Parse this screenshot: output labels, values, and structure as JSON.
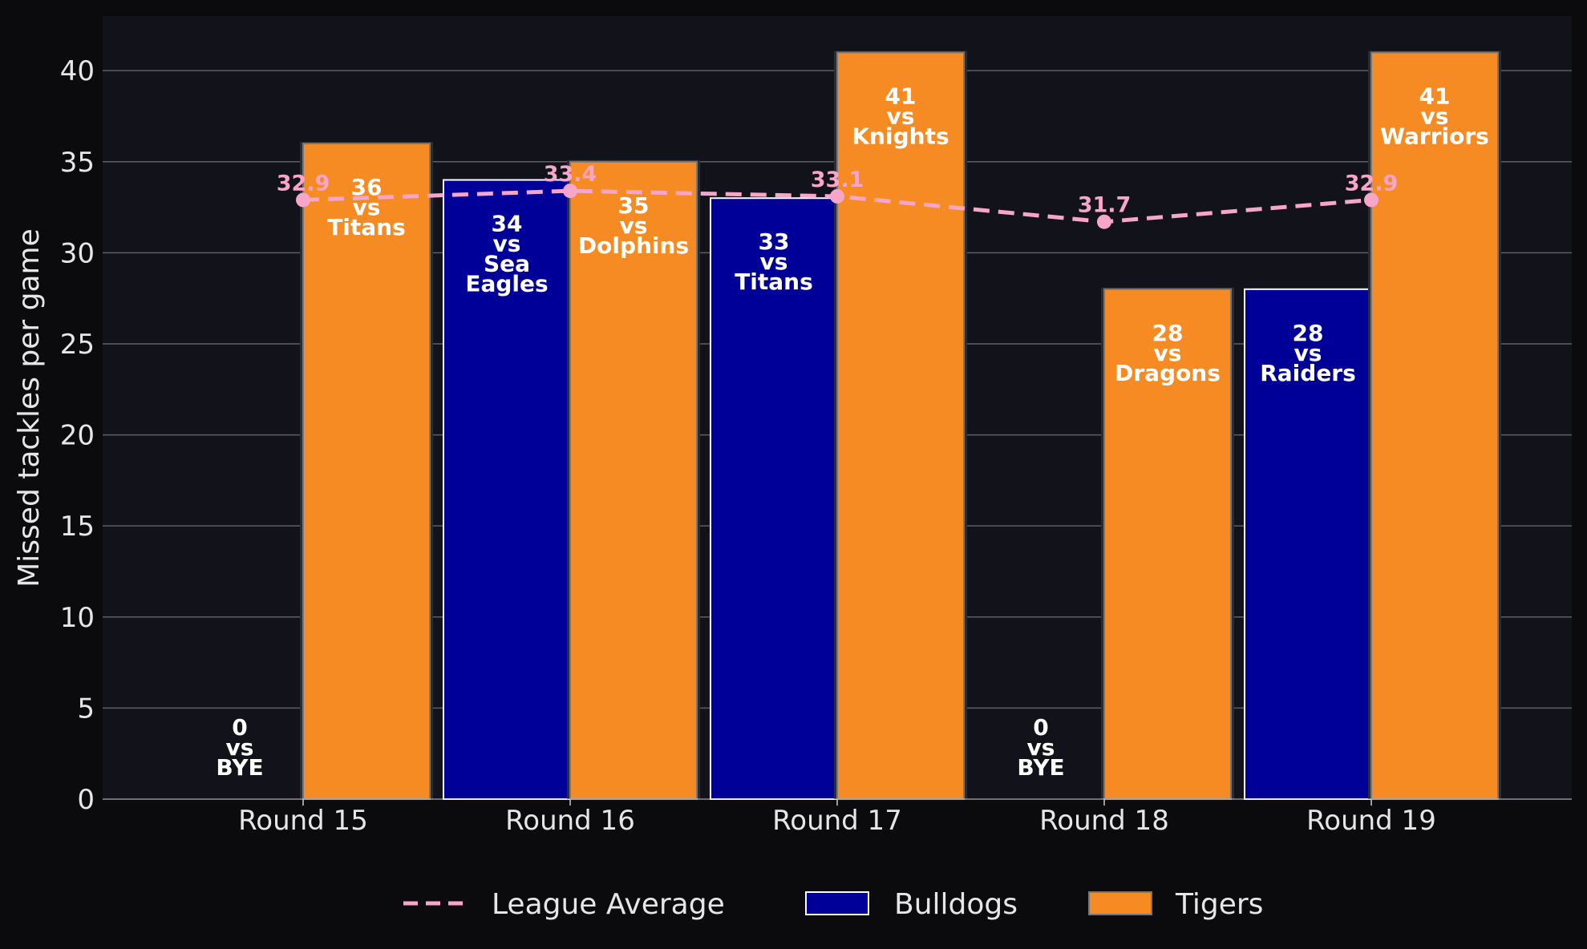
{
  "chart_data": {
    "type": "bar",
    "xlabel": "",
    "ylabel": "Missed tackles per game",
    "ylim": [
      0,
      43
    ],
    "yticks": [
      0,
      5,
      10,
      15,
      20,
      25,
      30,
      35,
      40
    ],
    "grid": "horizontal",
    "legend_position": "bottom-center",
    "categories": [
      "Round 15",
      "Round 16",
      "Round 17",
      "Round 18",
      "Round 19"
    ],
    "series": [
      {
        "name": "Bulldogs",
        "color": "#000099",
        "values": [
          0,
          34,
          33,
          0,
          28
        ],
        "opponents": [
          "BYE",
          "Sea\nEagles",
          "Titans",
          "BYE",
          "Raiders"
        ]
      },
      {
        "name": "Tigers",
        "color": "#f58b22",
        "values": [
          36,
          35,
          41,
          28,
          41
        ],
        "opponents": [
          "Titans",
          "Dolphins",
          "Knights",
          "Dragons",
          "Warriors"
        ]
      }
    ],
    "vs_text": "vs",
    "league_average": {
      "name": "League Average",
      "color": "#f7a6c9",
      "values": [
        32.9,
        33.4,
        33.1,
        31.7,
        32.9
      ]
    }
  }
}
